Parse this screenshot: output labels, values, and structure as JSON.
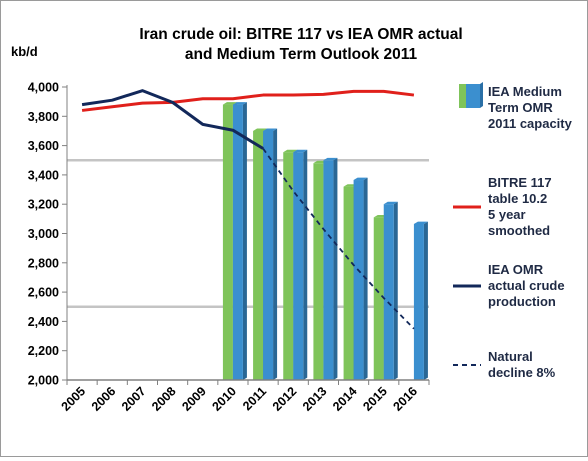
{
  "chart_data": {
    "type": "bar",
    "title": "Iran crude oil: BITRE 117 vs IEA OMR actual and Medium Term Outlook 2011",
    "title_lines": [
      "Iran crude oil: BITRE 117 vs IEA OMR actual",
      "and Medium Term Outlook 2011"
    ],
    "ylabel": "kb/d",
    "xlabel": "",
    "ylim": [
      2000,
      4000
    ],
    "yticks": [
      2000,
      2200,
      2400,
      2600,
      2800,
      3000,
      3200,
      3400,
      3600,
      3800,
      4000
    ],
    "ytick_labels": [
      "2,000",
      "2,200",
      "2,400",
      "2,600",
      "2,800",
      "3,000",
      "3,200",
      "3,400",
      "3,600",
      "3,800",
      "4,000"
    ],
    "categories": [
      "2005",
      "2006",
      "2007",
      "2008",
      "2009",
      "2010",
      "2011",
      "2012",
      "2013",
      "2014",
      "2015",
      "2016"
    ],
    "grid_lines": [
      2500,
      3500
    ],
    "legend_position": "right",
    "series": [
      {
        "name": "",
        "kind": "bar",
        "color": "#7fc45a",
        "values": [
          null,
          null,
          null,
          null,
          null,
          3880,
          3700,
          3555,
          3480,
          3320,
          3110,
          null
        ]
      },
      {
        "name": "IEA Medium Term OMR 2011 capacity",
        "legend_lines": [
          "IEA Medium",
          "Term OMR",
          "2011 capacity"
        ],
        "kind": "bar",
        "color": "#3b8fcf",
        "values": [
          null,
          null,
          null,
          null,
          null,
          3880,
          3700,
          3555,
          3500,
          3365,
          3200,
          3065
        ]
      },
      {
        "name": "BITRE 117 table 10.2 5 year smoothed",
        "legend_lines": [
          "BITRE 117",
          "table 10.2",
          "5 year",
          "smoothed"
        ],
        "kind": "line",
        "color": "#e0201b",
        "values": [
          3840,
          3865,
          3890,
          3895,
          3920,
          3920,
          3945,
          3945,
          3950,
          3970,
          3970,
          3945
        ]
      },
      {
        "name": "IEA OMR actual crude production",
        "legend_lines": [
          "IEA OMR",
          "actual crude",
          "production"
        ],
        "kind": "line",
        "color": "#12285a",
        "values": [
          3880,
          3910,
          3975,
          3895,
          3745,
          3705,
          3580,
          null,
          null,
          null,
          null,
          null
        ]
      },
      {
        "name": "Natural decline 8%",
        "legend_lines": [
          "Natural",
          "decline 8%"
        ],
        "kind": "dashed-line",
        "color": "#12285a",
        "values": [
          null,
          null,
          null,
          null,
          null,
          null,
          3580,
          3290,
          3030,
          2785,
          2560,
          2350
        ]
      }
    ]
  }
}
